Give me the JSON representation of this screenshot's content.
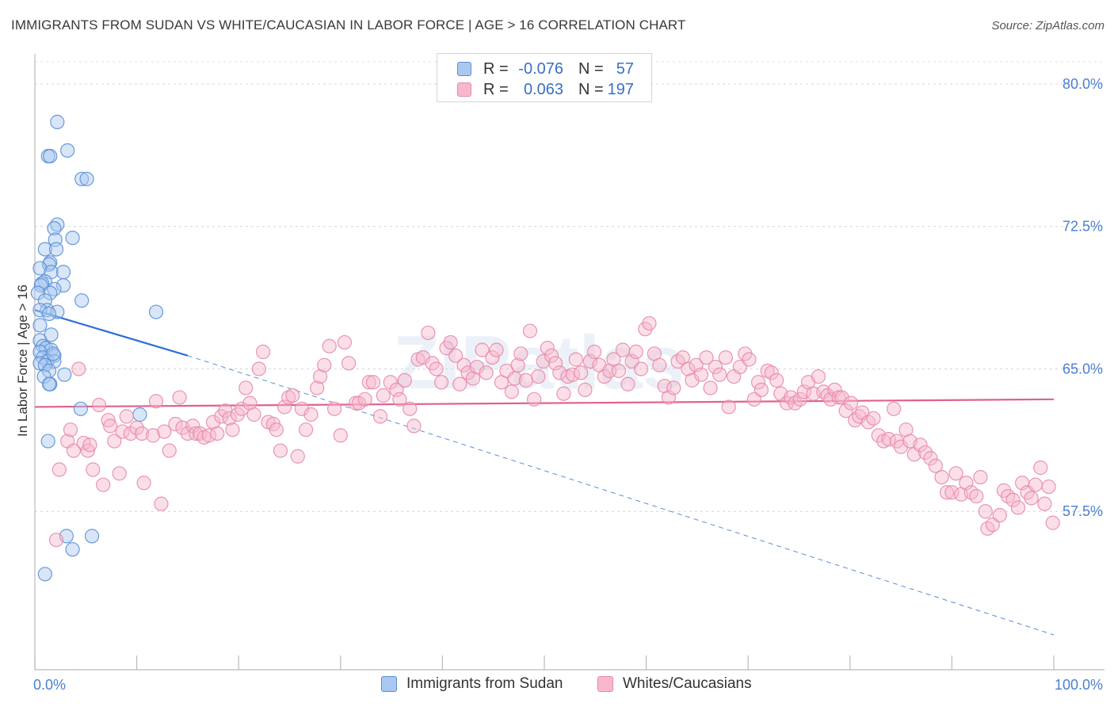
{
  "title": "IMMIGRANTS FROM SUDAN VS WHITE/CAUCASIAN IN LABOR FORCE | AGE > 16 CORRELATION CHART",
  "source": "Source: ZipAtlas.com",
  "watermark": "ZIPatlas",
  "legend": {
    "rows": [
      {
        "r_label": "R =",
        "r_value": "-0.076",
        "n_label": "N =",
        "n_value": "57",
        "color": "#a9c8f0",
        "stroke": "#5b8fd8"
      },
      {
        "r_label": "R =",
        "r_value": "0.063",
        "n_label": "N =",
        "n_value": "197",
        "color": "#f7b8cc",
        "stroke": "#e88aa8"
      }
    ]
  },
  "bottom_legend": [
    {
      "label": "Immigrants from Sudan",
      "color": "#a9c8f0",
      "stroke": "#5b8fd8"
    },
    {
      "label": "Whites/Caucasians",
      "color": "#f7b8cc",
      "stroke": "#e88aa8"
    }
  ],
  "chart_data": {
    "type": "scatter",
    "title": "IMMIGRANTS FROM SUDAN VS WHITE/CAUCASIAN IN LABOR FORCE | AGE > 16 CORRELATION CHART",
    "xlabel": "",
    "ylabel": "In Labor Force | Age > 16",
    "xlim": [
      0,
      100
    ],
    "ylim": [
      50.0,
      81.5
    ],
    "x_tick_labels": [
      {
        "value": 0,
        "label": "0.0%"
      },
      {
        "value": 100,
        "label": "100.0%"
      }
    ],
    "x_tick_marks": [
      0,
      10,
      20,
      30,
      40,
      50,
      60,
      70,
      80,
      90,
      100
    ],
    "y_ticks": [
      {
        "value": 57.5,
        "label": "57.5%"
      },
      {
        "value": 65.0,
        "label": "65.0%"
      },
      {
        "value": 72.5,
        "label": "72.5%"
      },
      {
        "value": 80.0,
        "label": "80.0%"
      }
    ],
    "grid": true,
    "series": [
      {
        "name": "Immigrants from Sudan",
        "color": "#a9c8f0",
        "stroke": "#5b8fd8",
        "trend": {
          "x0": 0,
          "y0": 68.1,
          "x1": 15,
          "y1": 65.7,
          "dashed_to_x": 100,
          "dashed_to_y": 51.0,
          "color": "#2d6fd6"
        },
        "points": [
          [
            2.2,
            78.0
          ],
          [
            3.2,
            76.5
          ],
          [
            1.3,
            76.2
          ],
          [
            1.5,
            76.2
          ],
          [
            4.6,
            75.0
          ],
          [
            5.1,
            75.0
          ],
          [
            2.2,
            72.6
          ],
          [
            1.9,
            72.4
          ],
          [
            3.7,
            71.9
          ],
          [
            2.0,
            71.8
          ],
          [
            1.0,
            71.3
          ],
          [
            2.1,
            71.3
          ],
          [
            1.5,
            70.6
          ],
          [
            1.4,
            70.5
          ],
          [
            0.5,
            70.3
          ],
          [
            1.6,
            70.1
          ],
          [
            2.8,
            70.1
          ],
          [
            1.0,
            69.6
          ],
          [
            0.7,
            69.5
          ],
          [
            0.6,
            69.4
          ],
          [
            2.8,
            69.4
          ],
          [
            1.9,
            69.2
          ],
          [
            1.5,
            69.0
          ],
          [
            0.3,
            69.0
          ],
          [
            1.0,
            68.6
          ],
          [
            4.6,
            68.6
          ],
          [
            1.2,
            68.1
          ],
          [
            0.5,
            68.1
          ],
          [
            2.2,
            68.0
          ],
          [
            11.9,
            68.0
          ],
          [
            1.4,
            67.9
          ],
          [
            0.5,
            67.3
          ],
          [
            1.6,
            66.8
          ],
          [
            0.5,
            66.5
          ],
          [
            0.8,
            66.2
          ],
          [
            1.1,
            66.1
          ],
          [
            1.6,
            66.0
          ],
          [
            0.5,
            65.9
          ],
          [
            1.9,
            65.7
          ],
          [
            0.8,
            65.6
          ],
          [
            1.2,
            65.4
          ],
          [
            1.9,
            65.4
          ],
          [
            0.5,
            65.3
          ],
          [
            1.0,
            65.2
          ],
          [
            1.4,
            64.9
          ],
          [
            2.9,
            64.7
          ],
          [
            0.9,
            64.6
          ],
          [
            1.5,
            64.2
          ],
          [
            1.4,
            64.2
          ],
          [
            4.5,
            62.9
          ],
          [
            10.3,
            62.6
          ],
          [
            1.3,
            61.2
          ],
          [
            3.1,
            56.2
          ],
          [
            5.6,
            56.2
          ],
          [
            3.7,
            55.5
          ],
          [
            1.0,
            54.2
          ],
          [
            1.8,
            65.8
          ]
        ]
      },
      {
        "name": "Whites/Caucasians",
        "color": "#f7b8cc",
        "stroke": "#e88aa8",
        "trend": {
          "x0": 0,
          "y0": 63.0,
          "x1": 100,
          "y1": 63.4,
          "color": "#e06090"
        },
        "points": [
          [
            2.1,
            56.0
          ],
          [
            2.4,
            59.7
          ],
          [
            3.2,
            61.2
          ],
          [
            3.5,
            61.8
          ],
          [
            3.8,
            60.7
          ],
          [
            4.3,
            65.0
          ],
          [
            4.8,
            61.1
          ],
          [
            5.2,
            60.7
          ],
          [
            5.4,
            61.0
          ],
          [
            5.7,
            59.7
          ],
          [
            6.3,
            63.1
          ],
          [
            6.7,
            58.9
          ],
          [
            7.2,
            62.3
          ],
          [
            7.4,
            62.0
          ],
          [
            7.8,
            61.2
          ],
          [
            8.3,
            59.5
          ],
          [
            8.6,
            61.7
          ],
          [
            9.0,
            62.5
          ],
          [
            9.4,
            61.6
          ],
          [
            10.0,
            61.9
          ],
          [
            10.5,
            61.6
          ],
          [
            10.7,
            59.0
          ],
          [
            11.6,
            61.5
          ],
          [
            11.9,
            63.3
          ],
          [
            12.4,
            57.9
          ],
          [
            12.7,
            61.7
          ],
          [
            13.2,
            60.7
          ],
          [
            13.8,
            62.1
          ],
          [
            14.2,
            63.5
          ],
          [
            14.5,
            61.9
          ],
          [
            15.0,
            61.6
          ],
          [
            15.5,
            62.0
          ],
          [
            15.8,
            61.6
          ],
          [
            16.2,
            61.6
          ],
          [
            16.6,
            61.4
          ],
          [
            17.1,
            61.5
          ],
          [
            17.5,
            62.2
          ],
          [
            17.9,
            61.6
          ],
          [
            18.3,
            62.5
          ],
          [
            18.7,
            62.8
          ],
          [
            19.1,
            62.4
          ],
          [
            19.4,
            61.8
          ],
          [
            19.9,
            62.6
          ],
          [
            20.3,
            62.9
          ],
          [
            20.7,
            64.0
          ],
          [
            21.1,
            63.2
          ],
          [
            21.5,
            62.6
          ],
          [
            22.0,
            65.0
          ],
          [
            22.4,
            65.9
          ],
          [
            22.9,
            62.2
          ],
          [
            23.4,
            62.1
          ],
          [
            23.7,
            61.8
          ],
          [
            24.1,
            60.7
          ],
          [
            24.5,
            63.0
          ],
          [
            24.9,
            63.5
          ],
          [
            25.3,
            63.6
          ],
          [
            25.8,
            60.4
          ],
          [
            26.2,
            62.9
          ],
          [
            26.6,
            61.8
          ],
          [
            27.1,
            62.6
          ],
          [
            27.7,
            64.0
          ],
          [
            28.0,
            64.6
          ],
          [
            28.4,
            65.2
          ],
          [
            28.9,
            66.2
          ],
          [
            29.4,
            62.9
          ],
          [
            30.0,
            61.5
          ],
          [
            30.4,
            66.4
          ],
          [
            30.8,
            65.3
          ],
          [
            31.5,
            63.2
          ],
          [
            31.8,
            63.2
          ],
          [
            32.4,
            63.4
          ],
          [
            32.8,
            64.3
          ],
          [
            33.2,
            64.3
          ],
          [
            33.9,
            62.5
          ],
          [
            34.2,
            63.6
          ],
          [
            34.9,
            64.3
          ],
          [
            35.5,
            63.9
          ],
          [
            35.8,
            63.4
          ],
          [
            36.3,
            64.4
          ],
          [
            36.8,
            62.9
          ],
          [
            37.2,
            62.0
          ],
          [
            37.6,
            65.5
          ],
          [
            38.1,
            65.6
          ],
          [
            38.6,
            66.9
          ],
          [
            39.0,
            65.3
          ],
          [
            39.4,
            65.0
          ],
          [
            39.9,
            64.3
          ],
          [
            40.4,
            66.1
          ],
          [
            40.8,
            66.4
          ],
          [
            41.3,
            65.7
          ],
          [
            41.7,
            64.2
          ],
          [
            42.1,
            65.2
          ],
          [
            42.5,
            64.8
          ],
          [
            43.0,
            64.5
          ],
          [
            43.4,
            65.1
          ],
          [
            43.9,
            66.0
          ],
          [
            44.3,
            64.8
          ],
          [
            44.9,
            65.6
          ],
          [
            45.3,
            66.0
          ],
          [
            45.8,
            64.3
          ],
          [
            46.3,
            64.9
          ],
          [
            46.8,
            63.8
          ],
          [
            47.1,
            64.5
          ],
          [
            47.4,
            65.2
          ],
          [
            47.7,
            65.8
          ],
          [
            48.2,
            64.4
          ],
          [
            48.6,
            67.0
          ],
          [
            49.0,
            63.4
          ],
          [
            49.4,
            64.6
          ],
          [
            49.9,
            65.4
          ],
          [
            50.3,
            66.1
          ],
          [
            50.7,
            65.7
          ],
          [
            51.1,
            65.3
          ],
          [
            51.5,
            64.8
          ],
          [
            51.9,
            63.7
          ],
          [
            52.3,
            64.6
          ],
          [
            52.8,
            64.7
          ],
          [
            53.1,
            65.5
          ],
          [
            53.6,
            64.8
          ],
          [
            54.0,
            63.9
          ],
          [
            54.5,
            65.4
          ],
          [
            54.9,
            65.9
          ],
          [
            55.4,
            65.2
          ],
          [
            55.9,
            64.6
          ],
          [
            56.4,
            64.9
          ],
          [
            56.8,
            65.5
          ],
          [
            57.3,
            64.9
          ],
          [
            57.7,
            66.0
          ],
          [
            58.2,
            64.2
          ],
          [
            58.6,
            65.4
          ],
          [
            59.0,
            65.9
          ],
          [
            59.5,
            65.0
          ],
          [
            59.9,
            67.1
          ],
          [
            60.3,
            67.4
          ],
          [
            60.8,
            65.8
          ],
          [
            61.3,
            65.2
          ],
          [
            61.8,
            64.1
          ],
          [
            62.2,
            63.5
          ],
          [
            62.7,
            64.0
          ],
          [
            63.1,
            65.4
          ],
          [
            63.6,
            65.6
          ],
          [
            64.1,
            65.0
          ],
          [
            64.5,
            64.4
          ],
          [
            64.9,
            65.2
          ],
          [
            65.4,
            64.7
          ],
          [
            65.9,
            65.6
          ],
          [
            66.3,
            64.0
          ],
          [
            66.8,
            65.1
          ],
          [
            67.2,
            64.7
          ],
          [
            67.8,
            65.6
          ],
          [
            68.1,
            63.0
          ],
          [
            68.6,
            64.6
          ],
          [
            69.2,
            65.1
          ],
          [
            69.7,
            65.8
          ],
          [
            70.1,
            65.5
          ],
          [
            70.6,
            63.4
          ],
          [
            71.0,
            64.3
          ],
          [
            71.3,
            63.9
          ],
          [
            71.9,
            64.9
          ],
          [
            72.3,
            64.8
          ],
          [
            72.8,
            64.4
          ],
          [
            73.2,
            63.7
          ],
          [
            73.8,
            63.2
          ],
          [
            74.2,
            63.5
          ],
          [
            74.6,
            63.2
          ],
          [
            75.1,
            63.4
          ],
          [
            75.5,
            63.8
          ],
          [
            75.9,
            64.3
          ],
          [
            76.4,
            63.7
          ],
          [
            76.9,
            64.6
          ],
          [
            77.4,
            63.8
          ],
          [
            77.8,
            63.6
          ],
          [
            78.1,
            63.4
          ],
          [
            78.5,
            63.9
          ],
          [
            78.9,
            63.5
          ],
          [
            79.2,
            63.5
          ],
          [
            79.6,
            62.8
          ],
          [
            80.1,
            63.2
          ],
          [
            80.5,
            62.3
          ],
          [
            80.9,
            62.5
          ],
          [
            81.2,
            62.7
          ],
          [
            81.8,
            62.2
          ],
          [
            82.3,
            62.4
          ],
          [
            82.8,
            61.5
          ],
          [
            83.3,
            61.2
          ],
          [
            83.8,
            61.3
          ],
          [
            84.3,
            62.9
          ],
          [
            84.6,
            61.2
          ],
          [
            85.0,
            60.9
          ],
          [
            85.5,
            61.8
          ],
          [
            85.9,
            61.2
          ],
          [
            86.3,
            60.5
          ],
          [
            86.9,
            61.0
          ],
          [
            87.4,
            60.6
          ],
          [
            87.9,
            60.3
          ],
          [
            88.4,
            59.9
          ],
          [
            89.0,
            59.3
          ],
          [
            89.5,
            58.5
          ],
          [
            90.0,
            58.5
          ],
          [
            90.4,
            59.5
          ],
          [
            90.9,
            58.4
          ],
          [
            91.4,
            59.0
          ],
          [
            91.9,
            58.5
          ],
          [
            92.4,
            58.3
          ],
          [
            92.8,
            59.3
          ],
          [
            93.3,
            57.5
          ],
          [
            93.5,
            56.6
          ],
          [
            94.0,
            56.8
          ],
          [
            94.7,
            57.3
          ],
          [
            95.1,
            58.6
          ],
          [
            95.5,
            58.3
          ],
          [
            96.0,
            58.1
          ],
          [
            96.5,
            57.7
          ],
          [
            96.9,
            59.0
          ],
          [
            97.4,
            58.5
          ],
          [
            97.8,
            58.2
          ],
          [
            98.2,
            58.9
          ],
          [
            98.7,
            59.8
          ],
          [
            99.1,
            57.9
          ],
          [
            99.5,
            58.8
          ],
          [
            99.9,
            56.9
          ]
        ]
      }
    ]
  }
}
